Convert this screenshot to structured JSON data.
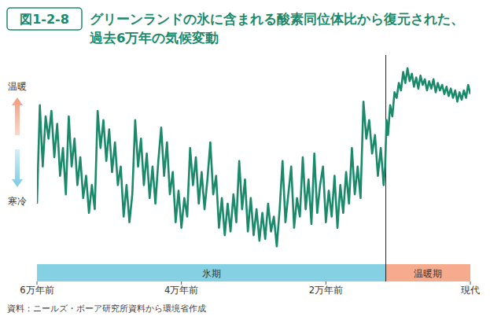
{
  "chart_data": {
    "type": "line",
    "figure_label": "図1-2-8",
    "title": "グリーンランドの氷に含まれる酸素同位体比から復元された、\n過去6万年の気候変動",
    "source": "資料：ニールズ・ボーア研究所資料から環境省作成",
    "y_axis_labels": {
      "high": "温暖",
      "low": "寒冷"
    },
    "color": "#1b8a6b",
    "grid": false,
    "tick_labels": "x",
    "xlim": [
      -60000,
      0
    ],
    "xticks": [
      {
        "value": -60000,
        "label": "6万年前"
      },
      {
        "value": -40000,
        "label": "4万年前"
      },
      {
        "value": -20000,
        "label": "2万年前"
      },
      {
        "value": 0,
        "label": "現代"
      }
    ],
    "ylim": [
      0,
      100
    ],
    "periods": [
      {
        "label": "氷期",
        "start": -60000,
        "end": -11700,
        "color": "#86d0e3"
      },
      {
        "label": "温暖期",
        "start": -11700,
        "end": 0,
        "color": "#f6ab8e"
      }
    ],
    "x": [
      -60000,
      -59600,
      -59200,
      -58800,
      -58400,
      -58000,
      -57600,
      -57200,
      -56800,
      -56400,
      -56000,
      -55600,
      -55200,
      -54800,
      -54400,
      -54000,
      -53600,
      -53200,
      -52800,
      -52400,
      -52000,
      -51600,
      -51200,
      -50800,
      -50400,
      -50000,
      -49600,
      -49200,
      -48800,
      -48400,
      -48000,
      -47600,
      -47200,
      -46800,
      -46400,
      -46000,
      -45600,
      -45200,
      -44800,
      -44400,
      -44000,
      -43600,
      -43200,
      -42800,
      -42400,
      -42000,
      -41600,
      -41200,
      -40800,
      -40400,
      -40000,
      -39600,
      -39200,
      -38800,
      -38400,
      -38000,
      -37600,
      -37200,
      -36800,
      -36400,
      -36000,
      -35600,
      -35200,
      -34800,
      -34400,
      -34000,
      -33600,
      -33200,
      -32800,
      -32400,
      -32000,
      -31600,
      -31200,
      -30800,
      -30400,
      -30000,
      -29600,
      -29200,
      -28800,
      -28400,
      -28000,
      -27600,
      -27200,
      -26800,
      -26400,
      -26000,
      -25600,
      -25200,
      -24800,
      -24400,
      -24000,
      -23600,
      -23200,
      -22800,
      -22400,
      -22000,
      -21600,
      -21200,
      -20800,
      -20400,
      -20000,
      -19600,
      -19200,
      -18800,
      -18400,
      -18000,
      -17600,
      -17200,
      -16800,
      -16400,
      -16000,
      -15600,
      -15200,
      -14800,
      -14400,
      -14000,
      -13600,
      -13200,
      -12800,
      -12400,
      -12000,
      -11800,
      -11600,
      -11400,
      -11100,
      -10800,
      -10500,
      -10200,
      -9900,
      -9600,
      -9300,
      -9000,
      -8700,
      -8400,
      -8100,
      -7800,
      -7500,
      -7200,
      -6900,
      -6600,
      -6300,
      -6000,
      -5700,
      -5400,
      -5100,
      -4800,
      -4500,
      -4200,
      -3900,
      -3600,
      -3300,
      -3000,
      -2700,
      -2400,
      -2100,
      -1800,
      -1500,
      -1200,
      -900,
      -600,
      -300,
      0
    ],
    "values": [
      25,
      78,
      45,
      72,
      60,
      75,
      50,
      68,
      40,
      55,
      30,
      72,
      45,
      60,
      35,
      50,
      28,
      40,
      20,
      35,
      22,
      75,
      55,
      70,
      48,
      65,
      42,
      58,
      35,
      45,
      18,
      35,
      15,
      30,
      70,
      45,
      60,
      35,
      52,
      28,
      45,
      25,
      48,
      66,
      40,
      58,
      30,
      42,
      15,
      32,
      12,
      28,
      18,
      55,
      35,
      50,
      25,
      42,
      22,
      38,
      58,
      30,
      40,
      12,
      28,
      8,
      25,
      10,
      30,
      15,
      48,
      22,
      38,
      10,
      28,
      8,
      22,
      5,
      20,
      6,
      25,
      10,
      18,
      2,
      22,
      48,
      15,
      30,
      45,
      12,
      28,
      18,
      50,
      22,
      38,
      14,
      52,
      20,
      35,
      45,
      15,
      32,
      18,
      40,
      12,
      35,
      20,
      42,
      25,
      55,
      30,
      45,
      28,
      80,
      60,
      70,
      52,
      62,
      40,
      55,
      35,
      45,
      70,
      62,
      78,
      72,
      85,
      82,
      90,
      86,
      96,
      90,
      98,
      91,
      95,
      88,
      93,
      87,
      94,
      89,
      92,
      86,
      91,
      87,
      92,
      85,
      90,
      86,
      89,
      84,
      88,
      83,
      87,
      82,
      86,
      80,
      85,
      81,
      86,
      82,
      89,
      84
    ]
  }
}
